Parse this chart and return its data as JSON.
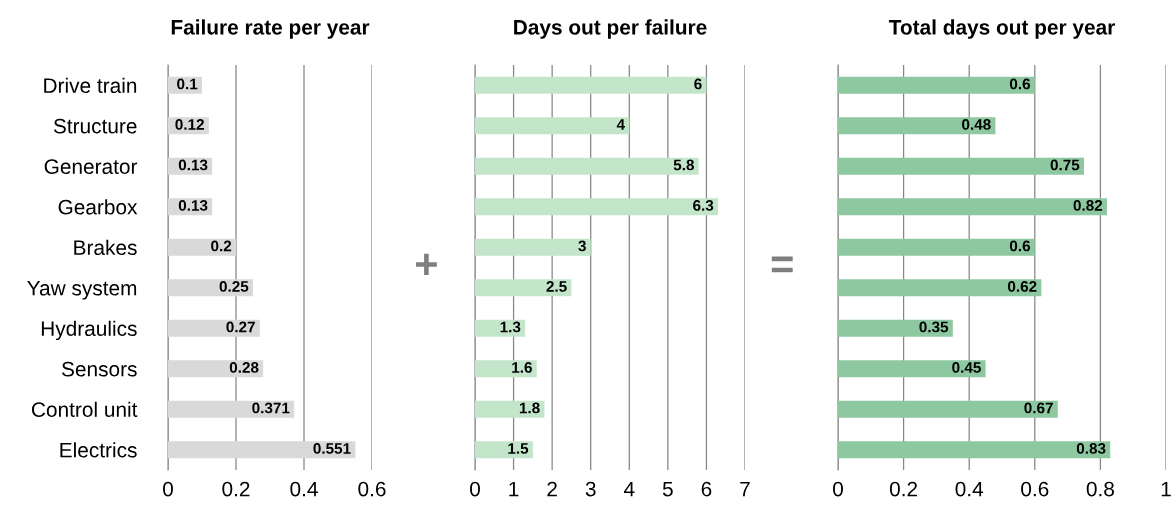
{
  "chart_data": [
    {
      "type": "bar",
      "orientation": "horizontal",
      "title": "Failure rate per year",
      "categories": [
        "Drive train",
        "Structure",
        "Generator",
        "Gearbox",
        "Brakes",
        "Yaw system",
        "Hydraulics",
        "Sensors",
        "Control unit",
        "Electrics"
      ],
      "values": [
        0.1,
        0.12,
        0.13,
        0.13,
        0.2,
        0.25,
        0.27,
        0.28,
        0.371,
        0.551
      ],
      "color": "#d9d9d9",
      "xlim": [
        0,
        0.6
      ],
      "xticks": [
        0,
        0.2,
        0.4,
        0.6
      ],
      "grid": "x",
      "data_labels": true
    },
    {
      "type": "bar",
      "orientation": "horizontal",
      "title": "Days out per failure",
      "categories": [
        null,
        null,
        null,
        null,
        null,
        null,
        null,
        null,
        null,
        null
      ],
      "values": [
        6,
        4,
        5.8,
        6.3,
        3,
        2.5,
        1.3,
        1.6,
        1.8,
        1.5
      ],
      "color": "#c3e6cb",
      "xlim": [
        0,
        7
      ],
      "xticks": [
        0,
        1,
        2,
        3,
        4,
        5,
        6,
        7
      ],
      "grid": "x",
      "data_labels": true,
      "tick_labels": "x",
      "annotations": [
        "+"
      ]
    },
    {
      "type": "bar",
      "orientation": "horizontal",
      "title": "Total days out per year",
      "categories": [
        null,
        null,
        null,
        null,
        null,
        null,
        null,
        null,
        null,
        null
      ],
      "values": [
        0.6,
        0.48,
        0.75,
        0.82,
        0.6,
        0.62,
        0.35,
        0.45,
        0.67,
        0.83
      ],
      "color": "#8dc8a0",
      "xlim": [
        0,
        1
      ],
      "xticks": [
        0,
        0.2,
        0.4,
        0.6,
        0.8,
        1
      ],
      "grid": "x",
      "data_labels": true,
      "tick_labels": "x",
      "annotations": [
        "="
      ]
    }
  ]
}
